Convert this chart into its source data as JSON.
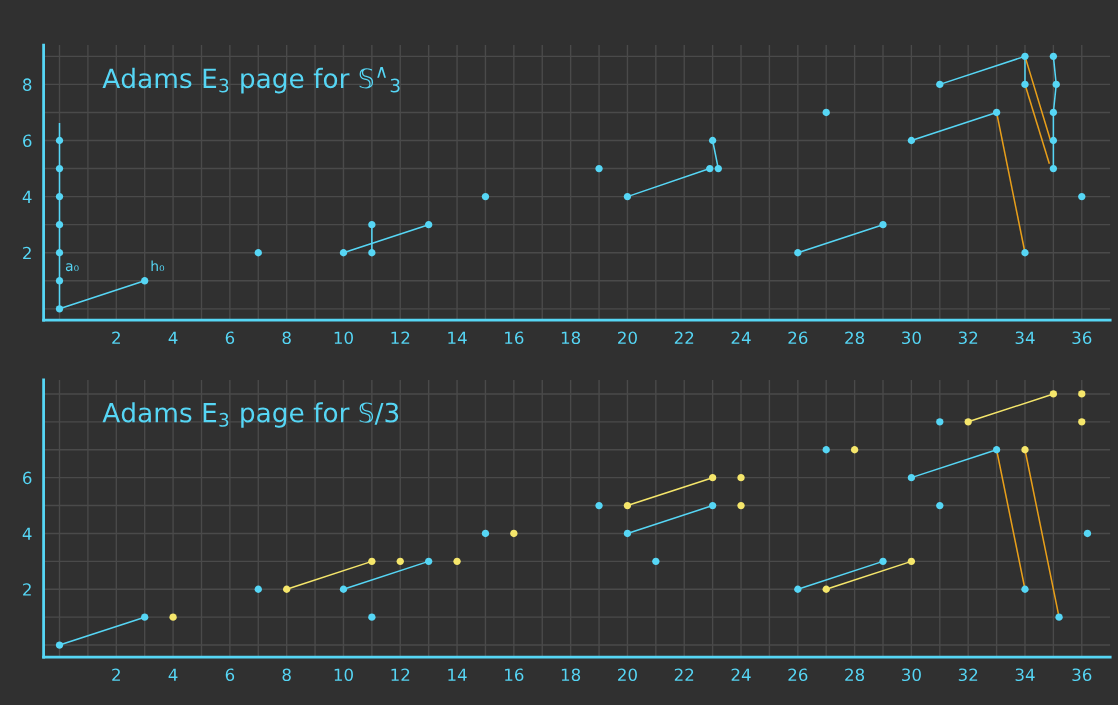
{
  "chart_data": [
    {
      "type": "scatter",
      "title": "Adams E$_{3}$ page for 𝕊$^{∧}$$_{3}$",
      "marker": "none",
      "grid": true,
      "xlim": [
        -0.56,
        37
      ],
      "ylim": [
        -0.4,
        9.4
      ],
      "xticks": [
        {
          "value": 0,
          "label": null
        },
        {
          "value": 1,
          "label": null
        },
        2,
        {
          "value": 3,
          "label": null
        },
        4,
        {
          "value": 5,
          "label": null
        },
        6,
        {
          "value": 7,
          "label": null
        },
        8,
        {
          "value": 9,
          "label": null
        },
        10,
        {
          "value": 11,
          "label": null
        },
        12,
        {
          "value": 13,
          "label": null
        },
        14,
        {
          "value": 15,
          "label": null
        },
        16,
        {
          "value": 17,
          "label": null
        },
        18,
        {
          "value": 19,
          "label": null
        },
        20,
        {
          "value": 21,
          "label": null
        },
        22,
        {
          "value": 23,
          "label": null
        },
        24,
        {
          "value": 25,
          "label": null
        },
        26,
        {
          "value": 27,
          "label": null
        },
        28,
        {
          "value": 29,
          "label": null
        },
        30,
        {
          "value": 31,
          "label": null
        },
        32,
        {
          "value": 33,
          "label": null
        },
        34,
        {
          "value": 35,
          "label": null
        },
        36
      ],
      "yticks": [
        {
          "value": 0,
          "label": null
        },
        {
          "value": 1,
          "label": null
        },
        2,
        {
          "value": 3,
          "label": null
        },
        4,
        {
          "value": 5,
          "label": null
        },
        6,
        {
          "value": 7,
          "label": null
        },
        8,
        {
          "value": 9,
          "label": null
        }
      ],
      "annotations": [
        {
          "text": "a₀",
          "x": 0,
          "y": 1
        },
        {
          "text": "h₀",
          "x": 3,
          "y": 1
        }
      ],
      "series": [
        {
          "marker": "circle",
          "color": "#56d6f5",
          "x": [
            0,
            0,
            0,
            0,
            0,
            0,
            0,
            3,
            7,
            10,
            11,
            11,
            13,
            15,
            19,
            20,
            22.9,
            23,
            23.2,
            26,
            27,
            29,
            30,
            31,
            33,
            34,
            34,
            34,
            35,
            35.1,
            35,
            35,
            35,
            36
          ],
          "values": [
            0,
            1,
            2,
            3,
            4,
            5,
            6,
            1,
            2,
            2,
            2,
            3,
            3,
            4,
            5,
            4,
            5,
            6,
            5,
            2,
            7,
            3,
            6,
            8,
            7,
            2,
            8,
            9,
            9,
            8,
            7,
            6,
            5,
            4
          ]
        },
        {
          "type": "line",
          "color": "#56d6f5",
          "x": [
            0,
            0
          ],
          "values": [
            0,
            6.6
          ]
        },
        {
          "type": "line",
          "color": "#56d6f5",
          "x": [
            0,
            3
          ],
          "values": [
            0,
            1
          ]
        },
        {
          "type": "line",
          "color": "#56d6f5",
          "x": [
            10,
            13
          ],
          "values": [
            2,
            3
          ]
        },
        {
          "type": "line",
          "color": "#56d6f5",
          "x": [
            11,
            11
          ],
          "values": [
            2,
            3
          ]
        },
        {
          "type": "line",
          "color": "#56d6f5",
          "x": [
            20,
            22.9
          ],
          "values": [
            4,
            5
          ]
        },
        {
          "type": "line",
          "color": "#56d6f5",
          "x": [
            23,
            23.2
          ],
          "values": [
            6,
            5
          ]
        },
        {
          "type": "line",
          "color": "#56d6f5",
          "x": [
            26,
            29
          ],
          "values": [
            2,
            3
          ]
        },
        {
          "type": "line",
          "color": "#56d6f5",
          "x": [
            30,
            33
          ],
          "values": [
            6,
            7
          ]
        },
        {
          "type": "line",
          "color": "#56d6f5",
          "x": [
            31,
            34
          ],
          "values": [
            8,
            9
          ]
        },
        {
          "type": "line",
          "color": "#56d6f5",
          "x": [
            34,
            34
          ],
          "values": [
            8,
            9
          ]
        },
        {
          "type": "line",
          "color": "#56d6f5",
          "x": [
            35,
            35.1,
            35,
            35,
            35
          ],
          "values": [
            9,
            8,
            7,
            6,
            5
          ]
        },
        {
          "type": "line",
          "color": "#e89f1a",
          "x": [
            34,
            33
          ],
          "values": [
            2,
            7
          ]
        },
        {
          "type": "line",
          "color": "#e89f1a",
          "x": [
            34.9,
            34
          ],
          "values": [
            6,
            9
          ]
        },
        {
          "type": "line",
          "color": "#e89f1a",
          "x": [
            34.85,
            34
          ],
          "values": [
            5.2,
            8
          ]
        }
      ]
    },
    {
      "type": "scatter",
      "title": "Adams E$_{3}$ page for 𝕊/3",
      "marker": "none",
      "grid": true,
      "xlim": [
        -0.56,
        37
      ],
      "ylim": [
        -0.43,
        9.5
      ],
      "xticks": [
        {
          "value": 0,
          "label": null
        },
        {
          "value": 1,
          "label": null
        },
        2,
        {
          "value": 3,
          "label": null
        },
        4,
        {
          "value": 5,
          "label": null
        },
        6,
        {
          "value": 7,
          "label": null
        },
        8,
        {
          "value": 9,
          "label": null
        },
        10,
        {
          "value": 11,
          "label": null
        },
        12,
        {
          "value": 13,
          "label": null
        },
        14,
        {
          "value": 15,
          "label": null
        },
        16,
        {
          "value": 17,
          "label": null
        },
        18,
        {
          "value": 19,
          "label": null
        },
        20,
        {
          "value": 21,
          "label": null
        },
        22,
        {
          "value": 23,
          "label": null
        },
        24,
        {
          "value": 25,
          "label": null
        },
        26,
        {
          "value": 27,
          "label": null
        },
        28,
        {
          "value": 29,
          "label": null
        },
        30,
        {
          "value": 31,
          "label": null
        },
        32,
        {
          "value": 33,
          "label": null
        },
        34,
        {
          "value": 35,
          "label": null
        },
        36
      ],
      "yticks": [
        {
          "value": 0,
          "label": null
        },
        {
          "value": 1,
          "label": null
        },
        2,
        {
          "value": 3,
          "label": null
        },
        4,
        {
          "value": 5,
          "label": null
        },
        6,
        {
          "value": 7,
          "label": null
        },
        {
          "value": 8,
          "label": null
        },
        {
          "value": 9,
          "label": null
        }
      ],
      "series": [
        {
          "marker": "circle",
          "color": "#56d6f5",
          "x": [
            0,
            3,
            7,
            10,
            11,
            13,
            15,
            19,
            20,
            21,
            23,
            26,
            27,
            29,
            30,
            31,
            31,
            33,
            34,
            35.2,
            36.2
          ],
          "values": [
            0,
            1,
            2,
            2,
            1,
            3,
            4,
            5,
            4,
            3,
            5,
            2,
            7,
            3,
            6,
            8,
            5,
            7,
            2,
            1,
            4
          ]
        },
        {
          "marker": "circle",
          "color": "#f5e66b",
          "x": [
            4,
            8,
            11,
            12,
            14,
            16,
            20,
            23,
            24,
            24,
            27,
            28,
            30,
            32,
            34,
            35,
            36,
            36
          ],
          "values": [
            1,
            2,
            3,
            3,
            3,
            4,
            5,
            6,
            6,
            5,
            2,
            7,
            3,
            8,
            7,
            9,
            9,
            8
          ]
        },
        {
          "type": "line",
          "color": "#56d6f5",
          "x": [
            0,
            3
          ],
          "values": [
            0,
            1
          ]
        },
        {
          "type": "line",
          "color": "#56d6f5",
          "x": [
            10,
            13
          ],
          "values": [
            2,
            3
          ]
        },
        {
          "type": "line",
          "color": "#56d6f5",
          "x": [
            20,
            23
          ],
          "values": [
            4,
            5
          ]
        },
        {
          "type": "line",
          "color": "#56d6f5",
          "x": [
            26,
            29
          ],
          "values": [
            2,
            3
          ]
        },
        {
          "type": "line",
          "color": "#56d6f5",
          "x": [
            30,
            33
          ],
          "values": [
            6,
            7
          ]
        },
        {
          "type": "line",
          "color": "#f5e66b",
          "x": [
            8,
            11
          ],
          "values": [
            2,
            3
          ]
        },
        {
          "type": "line",
          "color": "#f5e66b",
          "x": [
            20,
            23
          ],
          "values": [
            5,
            6
          ]
        },
        {
          "type": "line",
          "color": "#f5e66b",
          "x": [
            27,
            30
          ],
          "values": [
            2,
            3
          ]
        },
        {
          "type": "line",
          "color": "#f5e66b",
          "x": [
            32,
            35
          ],
          "values": [
            8,
            9
          ]
        },
        {
          "type": "line",
          "color": "#e89f1a",
          "x": [
            34,
            33
          ],
          "values": [
            2,
            7
          ]
        },
        {
          "type": "line",
          "color": "#e89f1a",
          "x": [
            35.2,
            34
          ],
          "values": [
            1,
            7
          ]
        }
      ]
    }
  ]
}
